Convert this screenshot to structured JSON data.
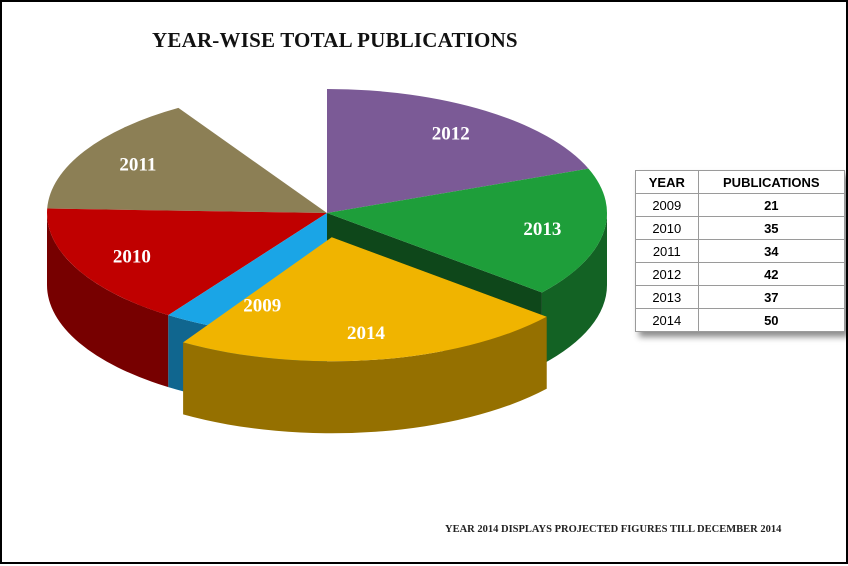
{
  "chart_data": {
    "type": "pie",
    "title": "YEAR-WISE TOTAL PUBLICATIONS",
    "categories": [
      "2009",
      "2010",
      "2011",
      "2012",
      "2013",
      "2014"
    ],
    "values": [
      21,
      35,
      34,
      42,
      37,
      50
    ],
    "slice_labels": [
      "2009",
      "2010",
      "2011",
      "2012",
      "2013",
      "2014"
    ],
    "colors": [
      "#1aa5e6",
      "#c00000",
      "#8c7f55",
      "#7b5a96",
      "#1e9e3a",
      "#f0b400"
    ],
    "exploded": "2014",
    "style": "3d",
    "table": {
      "headers": [
        "YEAR",
        "PUBLICATIONS"
      ],
      "rows": [
        [
          "2009",
          "21"
        ],
        [
          "2010",
          "35"
        ],
        [
          "2011",
          "34"
        ],
        [
          "2012",
          "42"
        ],
        [
          "2013",
          "37"
        ],
        [
          "2014",
          "50"
        ]
      ]
    }
  },
  "footnote": "YEAR 2014 DISPLAYS PROJECTED FIGURES TILL DECEMBER 2014"
}
